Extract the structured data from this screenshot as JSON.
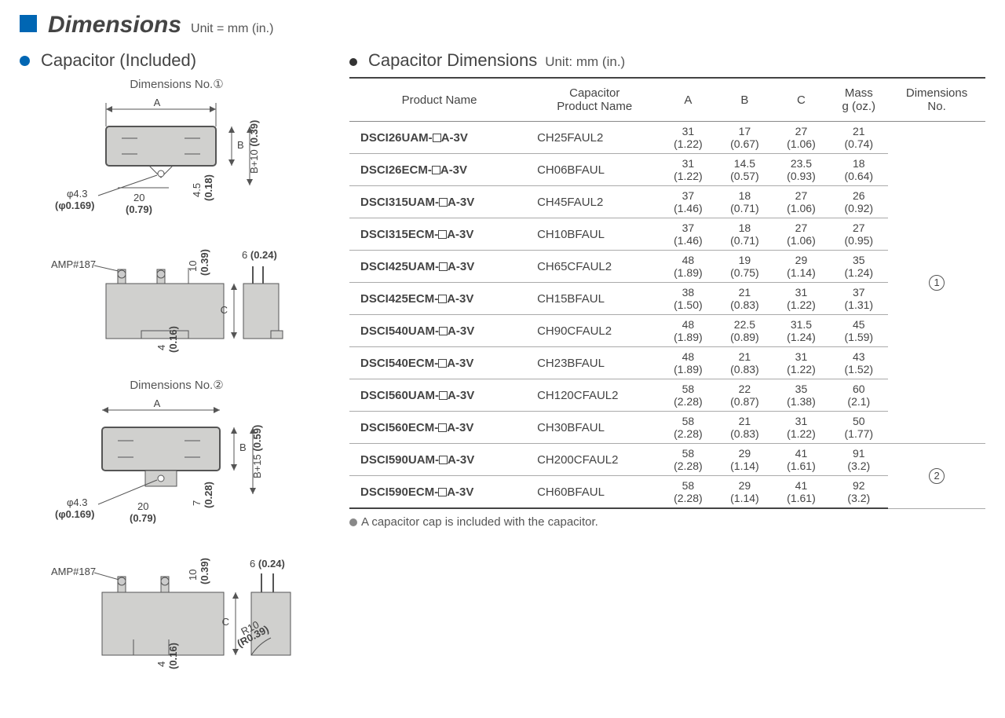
{
  "header": {
    "title": "Dimensions",
    "unit": "Unit = mm (in.)"
  },
  "left": {
    "title": "Capacitor (Included)",
    "caption1": "Dimensions No.①",
    "caption2": "Dimensions No.②",
    "labels": {
      "A": "A",
      "B": "B",
      "C": "C",
      "amp": "AMP#187",
      "phi43": "φ4.3",
      "phi0169": "(φ0.169)",
      "d20": "20",
      "d079": "(0.79)",
      "d45": "4.5",
      "d018": "(0.18)",
      "b10": "B+10",
      "b039": "(0.39)",
      "d10": "10",
      "d039": "(0.39)",
      "d6": "6",
      "d024": "(0.24)",
      "d4": "4",
      "d016": "(0.16)",
      "b15": "B+15",
      "b059": "(0.59)",
      "d7": "7",
      "d028": "(0.28)",
      "r10": "R10",
      "r039": "(R0.39)"
    }
  },
  "right": {
    "title": "Capacitor Dimensions",
    "unit": "Unit: mm (in.)",
    "columns": [
      "Product Name",
      "Capacitor\nProduct Name",
      "A",
      "B",
      "C",
      "Mass\ng (oz.)",
      "Dimensions\nNo."
    ],
    "rows": [
      {
        "product": "DSCI26UAM-□A-3V",
        "cap": "CH25FAUL2",
        "a": [
          "31",
          "(1.22)"
        ],
        "b": [
          "17",
          "(0.67)"
        ],
        "c": [
          "27",
          "(1.06)"
        ],
        "m": [
          "21",
          "(0.74)"
        ],
        "dim": 1
      },
      {
        "product": "DSCI26ECM-□A-3V",
        "cap": "CH06BFAUL",
        "a": [
          "31",
          "(1.22)"
        ],
        "b": [
          "14.5",
          "(0.57)"
        ],
        "c": [
          "23.5",
          "(0.93)"
        ],
        "m": [
          "18",
          "(0.64)"
        ],
        "dim": 1
      },
      {
        "product": "DSCI315UAM-□A-3V",
        "cap": "CH45FAUL2",
        "a": [
          "37",
          "(1.46)"
        ],
        "b": [
          "18",
          "(0.71)"
        ],
        "c": [
          "27",
          "(1.06)"
        ],
        "m": [
          "26",
          "(0.92)"
        ],
        "dim": 1
      },
      {
        "product": "DSCI315ECM-□A-3V",
        "cap": "CH10BFAUL",
        "a": [
          "37",
          "(1.46)"
        ],
        "b": [
          "18",
          "(0.71)"
        ],
        "c": [
          "27",
          "(1.06)"
        ],
        "m": [
          "27",
          "(0.95)"
        ],
        "dim": 1
      },
      {
        "product": "DSCI425UAM-□A-3V",
        "cap": "CH65CFAUL2",
        "a": [
          "48",
          "(1.89)"
        ],
        "b": [
          "19",
          "(0.75)"
        ],
        "c": [
          "29",
          "(1.14)"
        ],
        "m": [
          "35",
          "(1.24)"
        ],
        "dim": 1
      },
      {
        "product": "DSCI425ECM-□A-3V",
        "cap": "CH15BFAUL",
        "a": [
          "38",
          "(1.50)"
        ],
        "b": [
          "21",
          "(0.83)"
        ],
        "c": [
          "31",
          "(1.22)"
        ],
        "m": [
          "37",
          "(1.31)"
        ],
        "dim": 1
      },
      {
        "product": "DSCI540UAM-□A-3V",
        "cap": "CH90CFAUL2",
        "a": [
          "48",
          "(1.89)"
        ],
        "b": [
          "22.5",
          "(0.89)"
        ],
        "c": [
          "31.5",
          "(1.24)"
        ],
        "m": [
          "45",
          "(1.59)"
        ],
        "dim": 1
      },
      {
        "product": "DSCI540ECM-□A-3V",
        "cap": "CH23BFAUL",
        "a": [
          "48",
          "(1.89)"
        ],
        "b": [
          "21",
          "(0.83)"
        ],
        "c": [
          "31",
          "(1.22)"
        ],
        "m": [
          "43",
          "(1.52)"
        ],
        "dim": 1
      },
      {
        "product": "DSCI560UAM-□A-3V",
        "cap": "CH120CFAUL2",
        "a": [
          "58",
          "(2.28)"
        ],
        "b": [
          "22",
          "(0.87)"
        ],
        "c": [
          "35",
          "(1.38)"
        ],
        "m": [
          "60",
          "(2.1)"
        ],
        "dim": 1
      },
      {
        "product": "DSCI560ECM-□A-3V",
        "cap": "CH30BFAUL",
        "a": [
          "58",
          "(2.28)"
        ],
        "b": [
          "21",
          "(0.83)"
        ],
        "c": [
          "31",
          "(1.22)"
        ],
        "m": [
          "50",
          "(1.77)"
        ],
        "dim": 1
      },
      {
        "product": "DSCI590UAM-□A-3V",
        "cap": "CH200CFAUL2",
        "a": [
          "58",
          "(2.28)"
        ],
        "b": [
          "29",
          "(1.14)"
        ],
        "c": [
          "41",
          "(1.61)"
        ],
        "m": [
          "91",
          "(3.2)"
        ],
        "dim": 2
      },
      {
        "product": "DSCI590ECM-□A-3V",
        "cap": "CH60BFAUL",
        "a": [
          "58",
          "(2.28)"
        ],
        "b": [
          "29",
          "(1.14)"
        ],
        "c": [
          "41",
          "(1.61)"
        ],
        "m": [
          "92",
          "(3.2)"
        ],
        "dim": 2
      }
    ],
    "footnote": "A capacitor cap is included with the capacitor."
  },
  "colors": {
    "blue": "#0066b3",
    "grey_fill": "#d0d0ce",
    "border": "#555555",
    "text": "#444444"
  }
}
